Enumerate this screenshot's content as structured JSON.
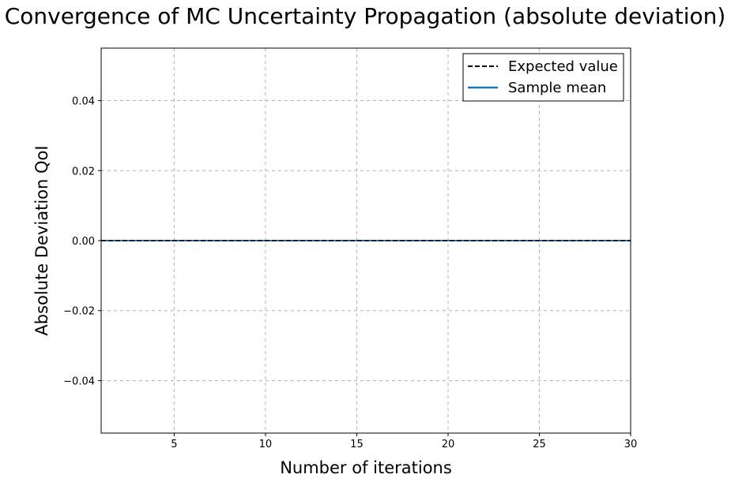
{
  "chart_data": {
    "type": "line",
    "title": "Convergence of MC Uncertainty Propagation (absolute deviation)",
    "xlabel": "Number of iterations",
    "ylabel": "Absolute Deviation QoI",
    "xlim": [
      1,
      30
    ],
    "ylim": [
      -0.055,
      0.055
    ],
    "x_ticks": [
      5,
      10,
      15,
      20,
      25,
      30
    ],
    "y_ticks": [
      -0.04,
      -0.02,
      0.0,
      0.02,
      0.04
    ],
    "x_tick_labels": [
      "5",
      "10",
      "15",
      "20",
      "25",
      "30"
    ],
    "y_tick_labels": [
      "−0.04",
      "−0.02",
      "0.00",
      "0.02",
      "0.04"
    ],
    "grid": true,
    "legend_position": "top-right",
    "series": [
      {
        "name": "Expected value",
        "style": "dashed",
        "color": "#000000",
        "x": [
          1,
          2,
          3,
          4,
          5,
          6,
          7,
          8,
          9,
          10,
          11,
          12,
          13,
          14,
          15,
          16,
          17,
          18,
          19,
          20,
          21,
          22,
          23,
          24,
          25,
          26,
          27,
          28,
          29,
          30
        ],
        "y": [
          0,
          0,
          0,
          0,
          0,
          0,
          0,
          0,
          0,
          0,
          0,
          0,
          0,
          0,
          0,
          0,
          0,
          0,
          0,
          0,
          0,
          0,
          0,
          0,
          0,
          0,
          0,
          0,
          0,
          0
        ]
      },
      {
        "name": "Sample mean",
        "style": "solid",
        "color": "#1f77b4",
        "x": [
          1,
          2,
          3,
          4,
          5,
          6,
          7,
          8,
          9,
          10,
          11,
          12,
          13,
          14,
          15,
          16,
          17,
          18,
          19,
          20,
          21,
          22,
          23,
          24,
          25,
          26,
          27,
          28,
          29,
          30
        ],
        "y": [
          0,
          0,
          0,
          0,
          0,
          0,
          0,
          0,
          0,
          0,
          0,
          0,
          0,
          0,
          0,
          0,
          0,
          0,
          0,
          0,
          0,
          0,
          0,
          0,
          0,
          0,
          0,
          0,
          0,
          0
        ]
      }
    ]
  }
}
